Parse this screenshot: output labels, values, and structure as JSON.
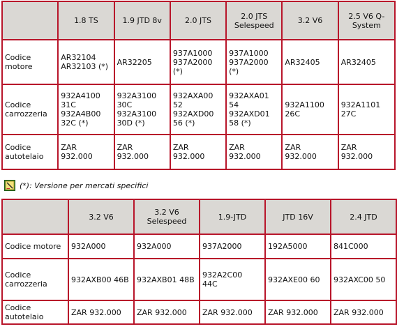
{
  "table1": {
    "headers": [
      "1.8 TS",
      "1.9 JTD 8v",
      "2.0 JTS",
      "2.0 JTS\nSelespeed",
      "3.2 V6",
      "2.5 V6 Q-\nSystem"
    ],
    "rows": [
      {
        "label": "Codice\nmotore",
        "cells": [
          "AR32104\nAR32103 (*)",
          "AR32205",
          "937A1000\n937A2000\n(*)",
          "937A1000\n937A2000\n(*)",
          "AR32405",
          "AR32405"
        ]
      },
      {
        "label": "Codice\ncarrozzeria",
        "cells": [
          "932A4100\n31C\n932A4B00\n32C (*)",
          "932A3100\n30C\n932A3100\n30D (*)",
          "932AXA00\n52\n932AXD00\n56 (*)",
          "932AXA01\n54\n932AXD01\n58 (*)",
          "932A1100\n26C",
          "932A1101\n27C"
        ]
      },
      {
        "label": "Codice\nautotelaio",
        "cells": [
          "ZAR\n932.000",
          "ZAR\n932.000",
          "ZAR\n932.000",
          "ZAR\n932.000",
          "ZAR\n932.000",
          "ZAR\n932.000"
        ]
      }
    ]
  },
  "note": {
    "icon": "note-icon",
    "text": "(*): Versione per mercati specifici"
  },
  "table2": {
    "headers": [
      "3.2 V6",
      "3.2 V6\nSelespeed",
      "1.9-JTD",
      "JTD 16V",
      "2.4 JTD"
    ],
    "rows": [
      {
        "label": "Codice motore",
        "cells": [
          "932A000",
          "932A000",
          "937A2000",
          "192A5000",
          "841C000"
        ]
      },
      {
        "label": "Codice\ncarrozzeria",
        "cells": [
          "932AXB00 46B",
          "932AXB01 48B",
          "932A2C00\n44C",
          "932AXE00 60",
          "932AXC00 50"
        ]
      },
      {
        "label": "Codice\nautotelaio",
        "cells": [
          "ZAR 932.000",
          "ZAR 932.000",
          "ZAR 932.000",
          "ZAR 932.000",
          "ZAR 932.000"
        ]
      }
    ]
  }
}
